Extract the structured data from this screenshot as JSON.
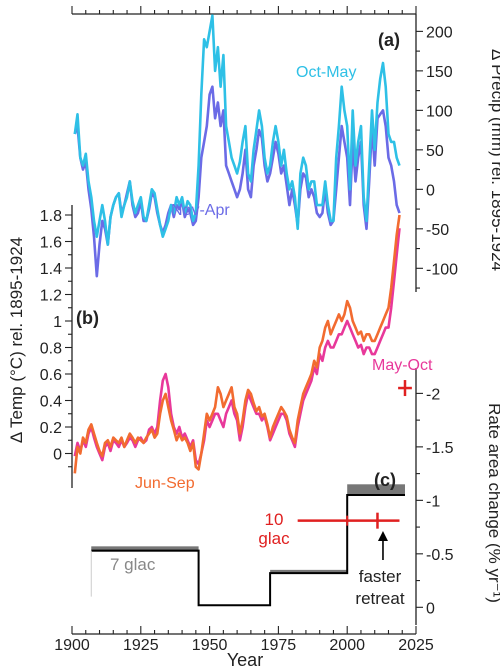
{
  "chart_data": [
    {
      "panel": "(a)",
      "type": "line",
      "ylabel": "Δ Precip (mm) rel. 1895-1924",
      "xlim": [
        1900,
        2025
      ],
      "ylim": [
        -130,
        222
      ],
      "yticks": [
        -100,
        -50,
        0,
        50,
        100,
        150,
        200
      ],
      "series": [
        {
          "name": "Oct-May",
          "color": "#2ec0e6",
          "x": [
            1901,
            1902,
            1903,
            1904,
            1905,
            1906,
            1907,
            1908,
            1909,
            1910,
            1911,
            1912,
            1913,
            1914,
            1915,
            1916,
            1917,
            1918,
            1919,
            1920,
            1921,
            1922,
            1923,
            1924,
            1925,
            1926,
            1927,
            1928,
            1929,
            1930,
            1931,
            1932,
            1933,
            1934,
            1935,
            1936,
            1937,
            1938,
            1939,
            1940,
            1941,
            1942,
            1943,
            1944,
            1945,
            1946,
            1947,
            1948,
            1949,
            1950,
            1951,
            1952,
            1953,
            1954,
            1955,
            1956,
            1957,
            1958,
            1959,
            1960,
            1961,
            1962,
            1963,
            1964,
            1965,
            1966,
            1967,
            1968,
            1969,
            1970,
            1971,
            1972,
            1973,
            1974,
            1975,
            1976,
            1977,
            1978,
            1979,
            1980,
            1981,
            1982,
            1983,
            1984,
            1985,
            1986,
            1987,
            1988,
            1989,
            1990,
            1991,
            1992,
            1993,
            1994,
            1995,
            1996,
            1997,
            1998,
            1999,
            2000,
            2001,
            2002,
            2003,
            2004,
            2005,
            2006,
            2007,
            2008,
            2009,
            2010,
            2011,
            2012,
            2013,
            2014,
            2015,
            2016,
            2017,
            2018,
            2019
          ],
          "values": [
            70,
            95,
            40,
            30,
            45,
            10,
            -10,
            -40,
            -60,
            -40,
            -20,
            -40,
            -70,
            -35,
            -20,
            -10,
            -5,
            -35,
            -20,
            -10,
            10,
            -15,
            -30,
            -20,
            -10,
            -35,
            -40,
            -20,
            0,
            -5,
            -25,
            -45,
            -60,
            -50,
            -40,
            -20,
            -30,
            -10,
            -20,
            -10,
            -30,
            -15,
            -20,
            -40,
            -30,
            30,
            120,
            190,
            180,
            200,
            220,
            150,
            180,
            130,
            170,
            80,
            60,
            40,
            30,
            20,
            35,
            60,
            80,
            20,
            10,
            50,
            75,
            100,
            80,
            40,
            20,
            30,
            60,
            80,
            60,
            30,
            50,
            20,
            0,
            10,
            -10,
            -50,
            20,
            40,
            30,
            0,
            10,
            10,
            -20,
            -20,
            -20,
            10,
            -20,
            -40,
            -40,
            40,
            80,
            130,
            100,
            80,
            0,
            100,
            30,
            60,
            80,
            -10,
            -40,
            30,
            100,
            50,
            110,
            140,
            160,
            130,
            70,
            60,
            60,
            40,
            30
          ]
        },
        {
          "name": "Nov-Apr",
          "color": "#6b6be6",
          "x": [
            1901,
            1902,
            1903,
            1904,
            1905,
            1906,
            1907,
            1908,
            1909,
            1910,
            1911,
            1912,
            1913,
            1914,
            1915,
            1916,
            1917,
            1918,
            1919,
            1920,
            1921,
            1922,
            1923,
            1924,
            1925,
            1926,
            1927,
            1928,
            1929,
            1930,
            1931,
            1932,
            1933,
            1934,
            1935,
            1936,
            1937,
            1938,
            1939,
            1940,
            1941,
            1942,
            1943,
            1944,
            1945,
            1946,
            1947,
            1948,
            1949,
            1950,
            1951,
            1952,
            1953,
            1954,
            1955,
            1956,
            1957,
            1958,
            1959,
            1960,
            1961,
            1962,
            1963,
            1964,
            1965,
            1966,
            1967,
            1968,
            1969,
            1970,
            1971,
            1972,
            1973,
            1974,
            1975,
            1976,
            1977,
            1978,
            1979,
            1980,
            1981,
            1982,
            1983,
            1984,
            1985,
            1986,
            1987,
            1988,
            1989,
            1990,
            1991,
            1992,
            1993,
            1994,
            1995,
            1996,
            1997,
            1998,
            1999,
            2000,
            2001,
            2002,
            2003,
            2004,
            2005,
            2006,
            2007,
            2008,
            2009,
            2010,
            2011,
            2012,
            2013,
            2014,
            2015,
            2016,
            2017,
            2018,
            2019
          ],
          "values": [
            70,
            80,
            40,
            25,
            35,
            0,
            -25,
            -60,
            -110,
            -70,
            -40,
            -50,
            -70,
            -35,
            -20,
            -10,
            -5,
            -30,
            -20,
            -5,
            10,
            -20,
            -35,
            -30,
            -15,
            -40,
            -40,
            -25,
            -5,
            -10,
            -30,
            -45,
            -55,
            -45,
            -30,
            -20,
            -35,
            -20,
            -25,
            -15,
            -35,
            -25,
            -30,
            -45,
            -40,
            -10,
            40,
            60,
            80,
            120,
            130,
            90,
            110,
            80,
            100,
            30,
            20,
            10,
            0,
            -10,
            0,
            20,
            50,
            0,
            -10,
            30,
            50,
            75,
            65,
            30,
            10,
            20,
            40,
            60,
            45,
            20,
            30,
            5,
            -20,
            0,
            -20,
            -45,
            0,
            20,
            15,
            -10,
            0,
            -10,
            -30,
            -35,
            -30,
            0,
            -30,
            -45,
            -40,
            0,
            40,
            80,
            60,
            40,
            -20,
            60,
            10,
            40,
            60,
            -20,
            -50,
            10,
            80,
            30,
            90,
            95,
            100,
            80,
            40,
            30,
            10,
            -20,
            -30
          ]
        }
      ]
    },
    {
      "panel": "(b)",
      "type": "line",
      "ylabel": "Δ Temp (°C) rel. 1895-1924",
      "xlim": [
        1900,
        2025
      ],
      "ylim": [
        -0.2,
        1.8
      ],
      "yticks": [
        0,
        0.2,
        0.4,
        0.6,
        0.8,
        1,
        1.2,
        1.4,
        1.6,
        1.8
      ],
      "yticklabels": [
        "0",
        "0.2",
        "0.4",
        "0.6",
        "0.8",
        "1",
        "1.2",
        "1.4",
        "1.6",
        "1.8"
      ],
      "series": [
        {
          "name": "May-Oct",
          "color": "#e8389a",
          "x": [
            1901,
            1902,
            1903,
            1904,
            1905,
            1906,
            1907,
            1908,
            1909,
            1910,
            1911,
            1912,
            1913,
            1914,
            1915,
            1916,
            1917,
            1918,
            1919,
            1920,
            1921,
            1922,
            1923,
            1924,
            1925,
            1926,
            1927,
            1928,
            1929,
            1930,
            1931,
            1932,
            1933,
            1934,
            1935,
            1936,
            1937,
            1938,
            1939,
            1940,
            1941,
            1942,
            1943,
            1944,
            1945,
            1946,
            1947,
            1948,
            1949,
            1950,
            1951,
            1952,
            1953,
            1954,
            1955,
            1956,
            1957,
            1958,
            1959,
            1960,
            1961,
            1962,
            1963,
            1964,
            1965,
            1966,
            1967,
            1968,
            1969,
            1970,
            1971,
            1972,
            1973,
            1974,
            1975,
            1976,
            1977,
            1978,
            1979,
            1980,
            1981,
            1982,
            1983,
            1984,
            1985,
            1986,
            1987,
            1988,
            1989,
            1990,
            1991,
            1992,
            1993,
            1994,
            1995,
            1996,
            1997,
            1998,
            1999,
            2000,
            2001,
            2002,
            2003,
            2004,
            2005,
            2006,
            2007,
            2008,
            2009,
            2010,
            2011,
            2012,
            2013,
            2014,
            2015,
            2016,
            2017,
            2018,
            2019
          ],
          "values": [
            -0.02,
            0.08,
            0.02,
            0.1,
            0.05,
            0.15,
            0.2,
            0.12,
            0.05,
            0,
            -0.05,
            0.05,
            0.08,
            0.02,
            0.1,
            0.08,
            0.05,
            0.1,
            0.05,
            0.08,
            0.12,
            0.1,
            0.05,
            0.1,
            0.12,
            0.08,
            0.1,
            0.18,
            0.2,
            0.15,
            0.2,
            0.4,
            0.55,
            0.6,
            0.5,
            0.3,
            0.2,
            0.15,
            0.2,
            0.12,
            0.15,
            0.1,
            0.05,
            0.1,
            -0.05,
            -0.08,
            0,
            0.1,
            0.25,
            0.2,
            0.25,
            0.3,
            0.3,
            0.25,
            0.2,
            0.3,
            0.35,
            0.4,
            0.3,
            0.25,
            0.1,
            0.2,
            0.35,
            0.45,
            0.4,
            0.35,
            0.3,
            0.3,
            0.25,
            0.28,
            0.2,
            0.1,
            0.15,
            0.2,
            0.25,
            0.3,
            0.3,
            0.25,
            0.15,
            0.1,
            0.05,
            0.2,
            0.3,
            0.4,
            0.45,
            0.5,
            0.55,
            0.65,
            0.6,
            0.75,
            0.7,
            0.8,
            0.85,
            0.8,
            0.8,
            0.85,
            0.9,
            0.9,
            0.95,
            1.0,
            0.95,
            0.9,
            0.85,
            0.8,
            0.82,
            0.75,
            0.8,
            0.8,
            0.75,
            0.75,
            0.8,
            0.85,
            0.9,
            0.95,
            0.95,
            1.1,
            1.3,
            1.5,
            1.7
          ]
        },
        {
          "name": "Jun-Sep",
          "color": "#f26b30",
          "x": [
            1901,
            1902,
            1903,
            1904,
            1905,
            1906,
            1907,
            1908,
            1909,
            1910,
            1911,
            1912,
            1913,
            1914,
            1915,
            1916,
            1917,
            1918,
            1919,
            1920,
            1921,
            1922,
            1923,
            1924,
            1925,
            1926,
            1927,
            1928,
            1929,
            1930,
            1931,
            1932,
            1933,
            1934,
            1935,
            1936,
            1937,
            1938,
            1939,
            1940,
            1941,
            1942,
            1943,
            1944,
            1945,
            1946,
            1947,
            1948,
            1949,
            1950,
            1951,
            1952,
            1953,
            1954,
            1955,
            1956,
            1957,
            1958,
            1959,
            1960,
            1961,
            1962,
            1963,
            1964,
            1965,
            1966,
            1967,
            1968,
            1969,
            1970,
            1971,
            1972,
            1973,
            1974,
            1975,
            1976,
            1977,
            1978,
            1979,
            1980,
            1981,
            1982,
            1983,
            1984,
            1985,
            1986,
            1987,
            1988,
            1989,
            1990,
            1991,
            1992,
            1993,
            1994,
            1995,
            1996,
            1997,
            1998,
            1999,
            2000,
            2001,
            2002,
            2003,
            2004,
            2005,
            2006,
            2007,
            2008,
            2009,
            2010,
            2011,
            2012,
            2013,
            2014,
            2015,
            2016,
            2017,
            2018,
            2019
          ],
          "values": [
            -0.15,
            0.05,
            0,
            0.12,
            0.08,
            0.18,
            0.22,
            0.15,
            0.08,
            0.02,
            -0.02,
            0.08,
            0.1,
            0.05,
            0.12,
            0.1,
            0.08,
            0.12,
            0.05,
            0.1,
            0.15,
            0.12,
            0.08,
            0.12,
            0.1,
            0.08,
            0.12,
            0.15,
            0.18,
            0.12,
            0.15,
            0.3,
            0.4,
            0.45,
            0.35,
            0.25,
            0.18,
            0.1,
            0.15,
            0.1,
            0.12,
            0.08,
            0.02,
            0.08,
            -0.1,
            -0.12,
            0,
            0.15,
            0.3,
            0.25,
            0.3,
            0.35,
            0.5,
            0.45,
            0.35,
            0.4,
            0.45,
            0.5,
            0.35,
            0.3,
            0.15,
            0.25,
            0.4,
            0.48,
            0.45,
            0.38,
            0.32,
            0.35,
            0.28,
            0.3,
            0.22,
            0.12,
            0.2,
            0.25,
            0.3,
            0.35,
            0.32,
            0.28,
            0.18,
            0.12,
            0.08,
            0.25,
            0.35,
            0.45,
            0.5,
            0.55,
            0.6,
            0.7,
            0.65,
            0.8,
            0.85,
            0.95,
            1.0,
            0.9,
            0.95,
            1.0,
            1.05,
            1.0,
            1.05,
            1.15,
            1.1,
            1.0,
            0.95,
            0.9,
            0.92,
            0.85,
            0.9,
            0.9,
            0.85,
            0.85,
            0.9,
            0.95,
            1.0,
            1.05,
            1.1,
            1.25,
            1.45,
            1.65,
            1.8
          ]
        }
      ]
    },
    {
      "panel": "(c)",
      "type": "step",
      "ylabel": "Rate area change (% yr⁻¹)",
      "ylim": [
        0.1,
        -2.2
      ],
      "yticks": [
        0,
        -0.5,
        -1,
        -1.5,
        -2
      ],
      "xlabel": "Year",
      "xticks": [
        1900,
        1925,
        1950,
        1975,
        2000,
        2025
      ],
      "steps": [
        {
          "x0": 1907,
          "x1": 1946,
          "y": -0.53,
          "band_low": -0.52,
          "band_high": -0.57
        },
        {
          "x0": 1946,
          "x1": 1972,
          "y": -0.02
        },
        {
          "x0": 1972,
          "x1": 2000,
          "y": -0.32,
          "band_low": -0.32,
          "band_high": -0.35
        },
        {
          "x0": 2000,
          "x1": 2021,
          "y": -1.05,
          "band_low": -1.05,
          "band_high": -1.15
        }
      ],
      "red_points": [
        {
          "x": 2011,
          "xerr": [
            1982,
            2019
          ],
          "y": -0.81
        },
        {
          "x": 2021,
          "y": -2.05,
          "xerr": [
            2018.5,
            2023.5
          ]
        }
      ],
      "annotations": {
        "seven_glac": "7 glac",
        "ten": "10",
        "ten_glac": "glac",
        "faster": "faster",
        "retreat": "retreat"
      }
    }
  ],
  "ytick_label_b_top": "1.8"
}
